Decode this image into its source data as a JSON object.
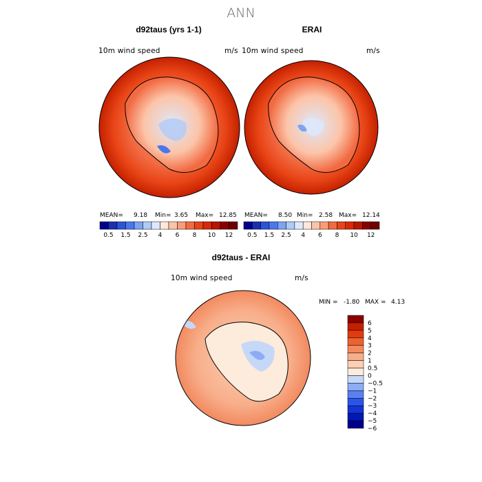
{
  "figure": {
    "title": "ANN"
  },
  "chart_data": [
    {
      "type": "heatmap",
      "title": "d92taus (yrs 1-1)",
      "variable": "10m wind speed",
      "units": "m/s",
      "projection": "south polar stereographic",
      "stats": {
        "mean_label": "MEAN=",
        "mean": "9.18",
        "min_label": "Min=",
        "min": "3.65",
        "max_label": "Max=",
        "max": "12.85"
      },
      "colorbar": {
        "levels": [
          0.5,
          1,
          1.5,
          2,
          2.5,
          3,
          4,
          5,
          6,
          7,
          8,
          9,
          10,
          11,
          12
        ],
        "tick_labels": [
          "0.5",
          "1.5",
          "2.5",
          "4",
          "6",
          "8",
          "10",
          "12"
        ],
        "colors": [
          "#00008b",
          "#1a2fb0",
          "#2a55d8",
          "#4a78ec",
          "#7da3f2",
          "#b0cbf7",
          "#dde8fb",
          "#ffe8d8",
          "#fcc4a8",
          "#f89c78",
          "#f26a42",
          "#e84416",
          "#d62a08",
          "#b81600",
          "#8a0000",
          "#6e0000"
        ]
      }
    },
    {
      "type": "heatmap",
      "title": "ERAI",
      "variable": "10m wind speed",
      "units": "m/s",
      "projection": "south polar stereographic",
      "stats": {
        "mean_label": "MEAN=",
        "mean": "8.50",
        "min_label": "Min=",
        "min": "2.58",
        "max_label": "Max=",
        "max": "12.14"
      },
      "colorbar": {
        "levels": [
          0.5,
          1,
          1.5,
          2,
          2.5,
          3,
          4,
          5,
          6,
          7,
          8,
          9,
          10,
          11,
          12
        ],
        "tick_labels": [
          "0.5",
          "1.5",
          "2.5",
          "4",
          "6",
          "8",
          "10",
          "12"
        ],
        "colors": [
          "#00008b",
          "#1a2fb0",
          "#2a55d8",
          "#4a78ec",
          "#7da3f2",
          "#b0cbf7",
          "#dde8fb",
          "#ffe8d8",
          "#fcc4a8",
          "#f89c78",
          "#f26a42",
          "#e84416",
          "#d62a08",
          "#b81600",
          "#8a0000",
          "#6e0000"
        ]
      }
    },
    {
      "type": "heatmap",
      "title": "d92taus - ERAI",
      "variable": "10m wind speed",
      "units": "m/s",
      "projection": "south polar stereographic",
      "stats": {
        "min_label": "MIN =",
        "min": "-1.80",
        "max_label": "MAX =",
        "max": "4.13"
      },
      "colorbar": {
        "levels": [
          -6,
          -5,
          -4,
          -3,
          -2,
          -1,
          -0.5,
          0,
          0.5,
          1,
          2,
          3,
          4,
          5,
          6
        ],
        "tick_labels": [
          "6",
          "5",
          "4",
          "3",
          "2",
          "1",
          "0.5",
          "0",
          "−0.5",
          "−1",
          "−2",
          "−3",
          "−4",
          "−5",
          "−6"
        ],
        "colors": [
          "#00008b",
          "#0018b4",
          "#1235d4",
          "#2c55e8",
          "#5a80f0",
          "#8eacf4",
          "#c6d8f8",
          "#fdebdc",
          "#fcd0b4",
          "#f8ae8a",
          "#f28a60",
          "#ec6230",
          "#e03c10",
          "#c42000",
          "#8c0000"
        ]
      }
    }
  ]
}
